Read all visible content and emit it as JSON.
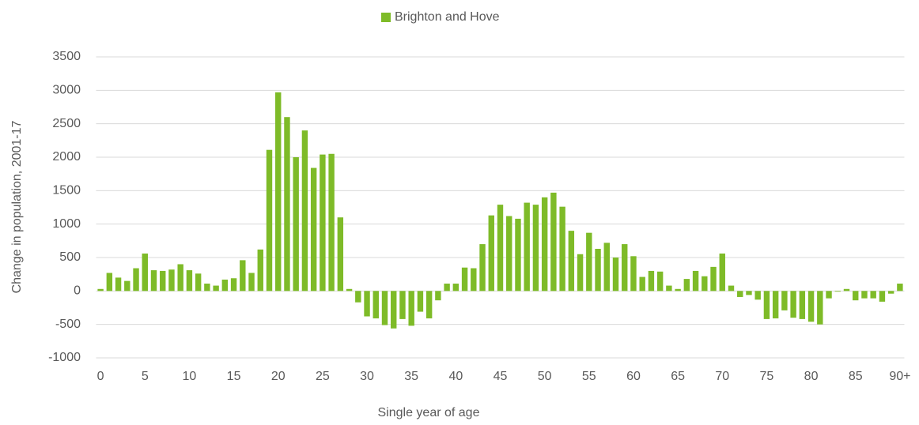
{
  "chart_data": {
    "type": "bar",
    "x_label": "Single year of age",
    "y_label": "Change in population, 2001-17",
    "legend": "top",
    "series": [
      {
        "name": "Brighton and Hove",
        "color": "#7ebb28",
        "values": [
          30,
          270,
          200,
          150,
          340,
          560,
          310,
          300,
          320,
          400,
          310,
          260,
          110,
          80,
          170,
          190,
          460,
          270,
          620,
          2110,
          2970,
          2600,
          2000,
          2400,
          1840,
          2040,
          2050,
          1100,
          30,
          -170,
          -380,
          -410,
          -510,
          -560,
          -420,
          -520,
          -310,
          -410,
          -140,
          110,
          110,
          350,
          340,
          700,
          1130,
          1290,
          1120,
          1080,
          1320,
          1290,
          1400,
          1470,
          1260,
          900,
          550,
          870,
          630,
          720,
          500,
          700,
          520,
          210,
          300,
          290,
          80,
          30,
          180,
          300,
          220,
          360,
          560,
          80,
          -90,
          -60,
          -130,
          -420,
          -410,
          -290,
          -400,
          -420,
          -460,
          -500,
          -110,
          -10,
          30,
          -140,
          -110,
          -110,
          -160,
          -40,
          110
        ]
      }
    ],
    "categories": [
      "0",
      null,
      null,
      null,
      null,
      "5",
      null,
      null,
      null,
      null,
      "10",
      null,
      null,
      null,
      null,
      "15",
      null,
      null,
      null,
      null,
      "20",
      null,
      null,
      null,
      null,
      "25",
      null,
      null,
      null,
      null,
      "30",
      null,
      null,
      null,
      null,
      "35",
      null,
      null,
      null,
      null,
      "40",
      null,
      null,
      null,
      null,
      "45",
      null,
      null,
      null,
      null,
      "50",
      null,
      null,
      null,
      null,
      "55",
      null,
      null,
      null,
      null,
      "60",
      null,
      null,
      null,
      null,
      "65",
      null,
      null,
      null,
      null,
      "70",
      null,
      null,
      null,
      null,
      "75",
      null,
      null,
      null,
      null,
      "80",
      null,
      null,
      null,
      null,
      "85",
      null,
      null,
      null,
      null,
      "90+"
    ],
    "ylim": [
      -1000,
      3500
    ],
    "yticks": [
      -1000,
      -500,
      0,
      500,
      1000,
      1500,
      2000,
      2500,
      3000,
      3500
    ],
    "grid": true
  }
}
